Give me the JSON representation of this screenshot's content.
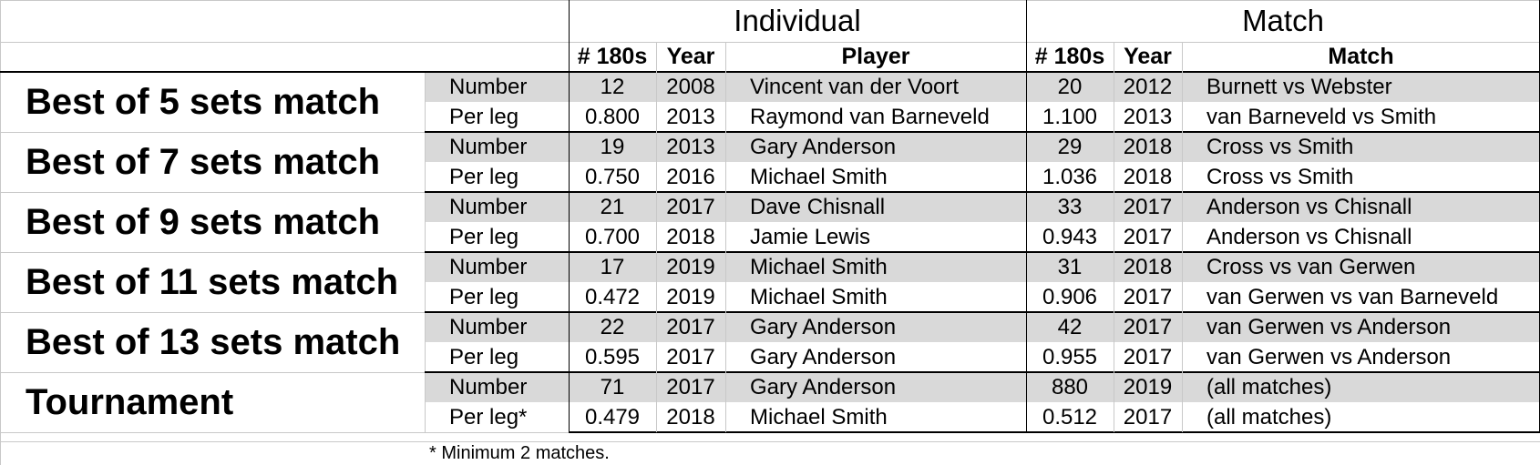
{
  "headers": {
    "individual": "Individual",
    "match": "Match",
    "ind_cols": [
      "# 180s",
      "Year",
      "Player"
    ],
    "match_cols": [
      "# 180s",
      "Year",
      "Match"
    ]
  },
  "groups": [
    {
      "label": "Best of 5 sets match",
      "rows": [
        {
          "type": "Number",
          "ind_180s": "12",
          "ind_year": "2008",
          "player": "Vincent van der Voort",
          "m_180s": "20",
          "m_year": "2012",
          "match": "Burnett vs Webster"
        },
        {
          "type": "Per leg",
          "ind_180s": "0.800",
          "ind_year": "2013",
          "player": "Raymond van Barneveld",
          "m_180s": "1.100",
          "m_year": "2013",
          "match": "van Barneveld vs Smith"
        }
      ]
    },
    {
      "label": "Best of 7 sets match",
      "rows": [
        {
          "type": "Number",
          "ind_180s": "19",
          "ind_year": "2013",
          "player": "Gary Anderson",
          "m_180s": "29",
          "m_year": "2018",
          "match": "Cross vs Smith"
        },
        {
          "type": "Per leg",
          "ind_180s": "0.750",
          "ind_year": "2016",
          "player": "Michael Smith",
          "m_180s": "1.036",
          "m_year": "2018",
          "match": "Cross vs Smith"
        }
      ]
    },
    {
      "label": "Best of 9 sets match",
      "rows": [
        {
          "type": "Number",
          "ind_180s": "21",
          "ind_year": "2017",
          "player": "Dave Chisnall",
          "m_180s": "33",
          "m_year": "2017",
          "match": "Anderson vs Chisnall"
        },
        {
          "type": "Per leg",
          "ind_180s": "0.700",
          "ind_year": "2018",
          "player": "Jamie Lewis",
          "m_180s": "0.943",
          "m_year": "2017",
          "match": "Anderson vs Chisnall"
        }
      ]
    },
    {
      "label": "Best of 11 sets match",
      "rows": [
        {
          "type": "Number",
          "ind_180s": "17",
          "ind_year": "2019",
          "player": "Michael Smith",
          "m_180s": "31",
          "m_year": "2018",
          "match": "Cross vs van Gerwen"
        },
        {
          "type": "Per leg",
          "ind_180s": "0.472",
          "ind_year": "2019",
          "player": "Michael Smith",
          "m_180s": "0.906",
          "m_year": "2017",
          "match": "van Gerwen vs van Barneveld"
        }
      ]
    },
    {
      "label": "Best of 13 sets match",
      "rows": [
        {
          "type": "Number",
          "ind_180s": "22",
          "ind_year": "2017",
          "player": "Gary Anderson",
          "m_180s": "42",
          "m_year": "2017",
          "match": "van Gerwen vs Anderson"
        },
        {
          "type": "Per leg",
          "ind_180s": "0.595",
          "ind_year": "2017",
          "player": "Gary Anderson",
          "m_180s": "0.955",
          "m_year": "2017",
          "match": "van Gerwen vs Anderson"
        }
      ]
    },
    {
      "label": "Tournament",
      "rows": [
        {
          "type": "Number",
          "ind_180s": "71",
          "ind_year": "2017",
          "player": "Gary Anderson",
          "m_180s": "880",
          "m_year": "2019",
          "match": "(all matches)"
        },
        {
          "type": "Per leg*",
          "ind_180s": "0.479",
          "ind_year": "2018",
          "player": "Michael Smith",
          "m_180s": "0.512",
          "m_year": "2017",
          "match": "(all matches)"
        }
      ]
    }
  ],
  "footnote": "* Minimum 2 matches.",
  "colors": {
    "shade": "#d9d9d9",
    "grid": "#c8c8c8",
    "border": "#000000"
  }
}
